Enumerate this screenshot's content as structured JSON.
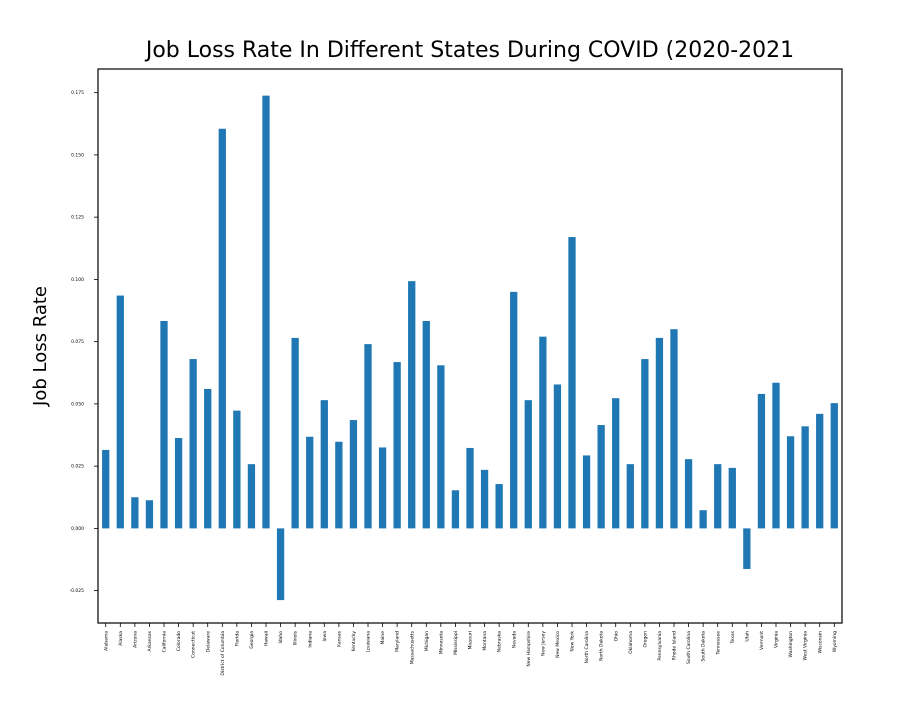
{
  "chart_data": {
    "type": "bar",
    "title": "Job Loss Rate In Different States During COVID (2020-2021",
    "xlabel": "",
    "ylabel": "Job Loss Rate",
    "ylim": [
      -0.038,
      0.1845
    ],
    "yticks": [
      "-0.025",
      "0.000",
      "0.025",
      "0.050",
      "0.075",
      "0.100",
      "0.125",
      "0.150",
      "0.175"
    ],
    "grid": false,
    "bar_color": "#1f77b4",
    "categories": [
      "Alabama",
      "Alaska",
      "Arizona",
      "Arkansas",
      "California",
      "Colorado",
      "Connecticut",
      "Delaware",
      "District of Columbia",
      "Florida",
      "Georgia",
      "Hawaii",
      "Idaho",
      "Illinois",
      "Indiana",
      "Iowa",
      "Kansas",
      "Kentucky",
      "Louisiana",
      "Maine",
      "Maryland",
      "Massachusetts",
      "Michigan",
      "Minnesota",
      "Mississippi",
      "Missouri",
      "Montana",
      "Nebraska",
      "Nevada",
      "New Hampshire",
      "New Jersey",
      "New Mexico",
      "New York",
      "North Carolina",
      "North Dakota",
      "Ohio",
      "Oklahoma",
      "Oregon",
      "Pennsylvania",
      "Rhode Island",
      "South Carolina",
      "South Dakota",
      "Tennessee",
      "Texas",
      "Utah",
      "Vermont",
      "Virginia",
      "Washington",
      "West Virginia",
      "Wisconsin",
      "Wyoming"
    ],
    "values": [
      0.0315,
      0.0935,
      0.0125,
      0.0113,
      0.0833,
      0.0363,
      0.068,
      0.056,
      0.1605,
      0.0473,
      0.0258,
      0.1738,
      -0.0288,
      0.0765,
      0.0368,
      0.0515,
      0.0348,
      0.0435,
      0.074,
      0.0325,
      0.0668,
      0.0993,
      0.0833,
      0.0655,
      0.0153,
      0.0323,
      0.0235,
      0.0178,
      0.095,
      0.0515,
      0.077,
      0.0578,
      0.117,
      0.0293,
      0.0415,
      0.0523,
      0.0258,
      0.068,
      0.0765,
      0.08,
      0.0278,
      0.0073,
      0.0258,
      0.0243,
      -0.0163,
      0.054,
      0.0585,
      0.037,
      0.041,
      0.046,
      0.0503
    ]
  }
}
